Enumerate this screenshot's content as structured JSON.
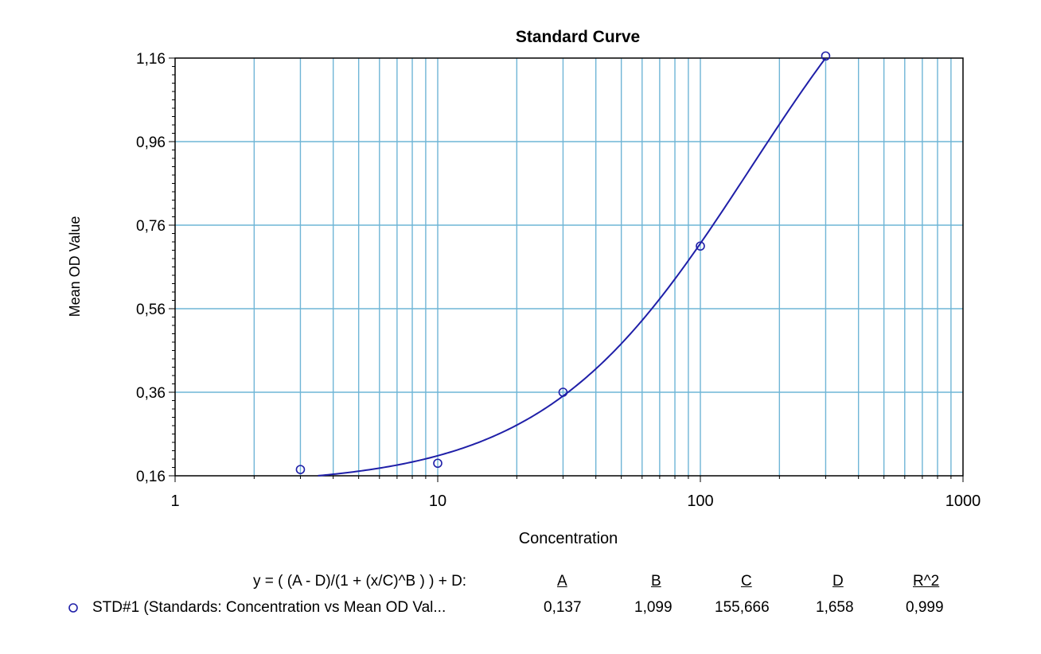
{
  "chart_data": {
    "type": "scatter",
    "title": "Standard Curve",
    "xlabel": "Concentration",
    "ylabel": "Mean OD Value",
    "x_scale": "log",
    "xlim": [
      1,
      1000
    ],
    "ylim": [
      0.16,
      1.16
    ],
    "x_tick_labels": [
      "1",
      "10",
      "100",
      "1000"
    ],
    "y_tick_labels": [
      "0,16",
      "0,36",
      "0,56",
      "0,76",
      "0,96",
      "1,16"
    ],
    "grid": true,
    "series": [
      {
        "name": "STD#1 (Standards: Concentration vs Mean OD Val...",
        "marker": "circle",
        "color": "#1f1fa8",
        "x": [
          3,
          10,
          30,
          100,
          300
        ],
        "y": [
          0.175,
          0.19,
          0.36,
          0.71,
          1.165
        ]
      }
    ],
    "fit": {
      "equation": "y = ( (A - D)/(1 + (x/C)^B ) ) + D:",
      "params": {
        "A": 0.137,
        "B": 1.099,
        "C": 155.666,
        "D": 1.658
      },
      "r2": 0.999,
      "color": "#1f1fa8"
    },
    "legend": {
      "equation_label": "y = ( (A - D)/(1 + (x/C)^B ) ) + D:",
      "headers": [
        "A",
        "B",
        "C",
        "D",
        "R^2"
      ],
      "row_label": "STD#1 (Standards: Concentration vs Mean OD Val...",
      "row_values": [
        "0,137",
        "1,099",
        "155,666",
        "1,658",
        "0,999"
      ],
      "placement": "bottom"
    },
    "colors": {
      "grid": "#6fb5d6",
      "series": "#1f1fa8",
      "axis": "#000000"
    }
  }
}
